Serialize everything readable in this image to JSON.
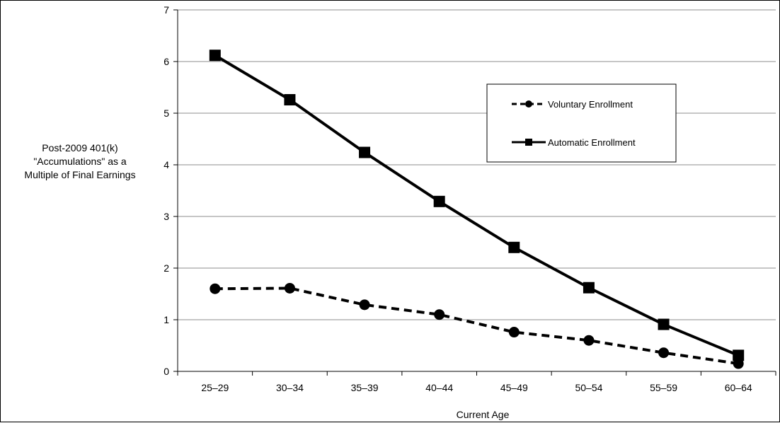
{
  "chart_data": {
    "type": "line",
    "title": "",
    "xlabel": "Current Age",
    "ylabel": "Post-2009 401(k)\n\"Accumulations\" as a\nMultiple of Final Earnings",
    "categories": [
      "25–29",
      "30–34",
      "35–39",
      "40–44",
      "45–49",
      "50–54",
      "55–59",
      "60–64"
    ],
    "ylim": [
      0,
      7
    ],
    "yticks": [
      0,
      1,
      2,
      3,
      4,
      5,
      6,
      7
    ],
    "grid": "horizontal",
    "legend_position": "top-right",
    "series": [
      {
        "name": "Voluntary Enrollment",
        "values": [
          1.6,
          1.61,
          1.29,
          1.1,
          0.76,
          0.6,
          0.36,
          0.15
        ],
        "line_style": "dashed",
        "marker": "circle",
        "color": "#000000"
      },
      {
        "name": "Automatic Enrollment",
        "values": [
          6.12,
          5.26,
          4.24,
          3.29,
          2.4,
          1.62,
          0.91,
          0.31
        ],
        "line_style": "solid",
        "marker": "square",
        "color": "#000000"
      }
    ]
  }
}
